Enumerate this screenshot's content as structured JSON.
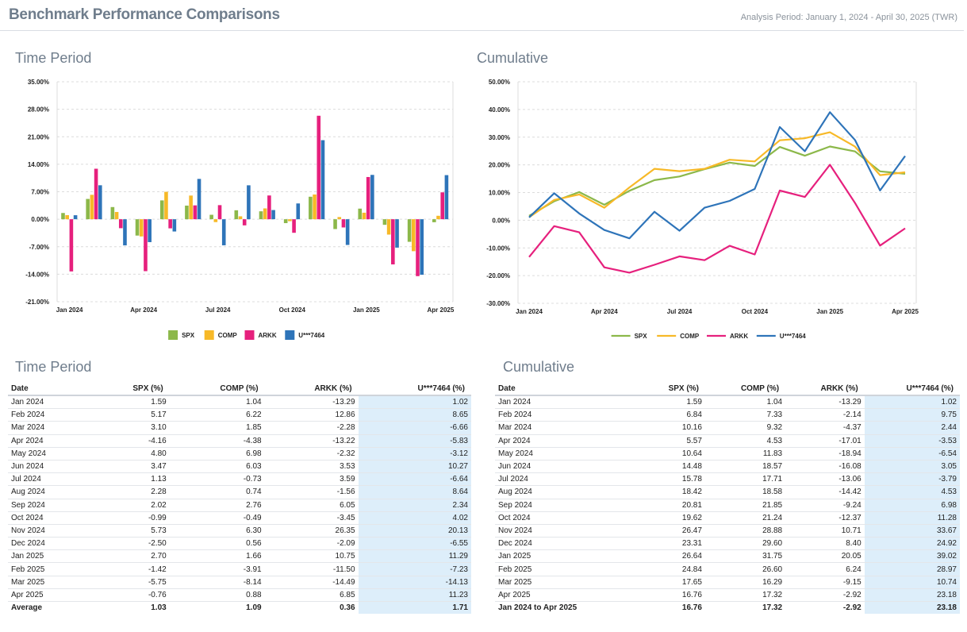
{
  "header": {
    "title": "Benchmark Performance Comparisons",
    "period": "Analysis Period: January 1, 2024 - April 30, 2025 (TWR)"
  },
  "sections": {
    "chart1_title": "Time Period",
    "chart2_title": "Cumulative",
    "table1_title": "Time Period",
    "table2_title": "Cumulative"
  },
  "colors": {
    "SPX": "#8cb84a",
    "COMP": "#f7b928",
    "ARKK": "#e6207d",
    "U***7464": "#2e74b9"
  },
  "months": [
    "Jan 2024",
    "Feb 2024",
    "Mar 2024",
    "Apr 2024",
    "May 2024",
    "Jun 2024",
    "Jul 2024",
    "Aug 2024",
    "Sep 2024",
    "Oct 2024",
    "Nov 2024",
    "Dec 2024",
    "Jan 2025",
    "Feb 2025",
    "Mar 2025",
    "Apr 2025"
  ],
  "chart_data": [
    {
      "type": "bar",
      "x_tick_labels": [
        "Jan 2024",
        "Apr 2024",
        "Jul 2024",
        "Oct 2024",
        "Jan 2025",
        "Apr 2025"
      ],
      "y_ticks": [
        "35.00%",
        "28.00%",
        "21.00%",
        "14.00%",
        "7.00%",
        "0.00%",
        "-7.00%",
        "-14.00%",
        "-21.00%"
      ],
      "ylim": [
        -21,
        35
      ],
      "grid": true,
      "legend": "bottom",
      "series": [
        {
          "name": "SPX",
          "values": [
            1.59,
            5.17,
            3.1,
            -4.16,
            4.8,
            3.47,
            1.13,
            2.28,
            2.02,
            -0.99,
            5.73,
            -2.5,
            2.7,
            -1.42,
            -5.75,
            -0.76
          ]
        },
        {
          "name": "COMP",
          "values": [
            1.04,
            6.22,
            1.85,
            -4.38,
            6.98,
            6.03,
            -0.73,
            0.74,
            2.76,
            -0.49,
            6.3,
            0.56,
            1.66,
            -3.91,
            -8.14,
            0.88
          ]
        },
        {
          "name": "ARKK",
          "values": [
            -13.29,
            12.86,
            -2.28,
            -13.22,
            -2.32,
            3.53,
            3.59,
            -1.56,
            6.05,
            -3.45,
            26.35,
            -2.09,
            10.75,
            -11.5,
            -14.49,
            6.85
          ]
        },
        {
          "name": "U***7464",
          "values": [
            1.02,
            8.65,
            -6.66,
            -5.83,
            -3.12,
            10.27,
            -6.64,
            8.64,
            2.34,
            4.02,
            20.13,
            -6.55,
            11.29,
            -7.23,
            -14.13,
            11.23
          ]
        }
      ]
    },
    {
      "type": "line",
      "x_tick_labels": [
        "Jan 2024",
        "Apr 2024",
        "Jul 2024",
        "Oct 2024",
        "Jan 2025",
        "Apr 2025"
      ],
      "y_ticks": [
        "50.00%",
        "40.00%",
        "30.00%",
        "20.00%",
        "10.00%",
        "0.00%",
        "-10.00%",
        "-20.00%",
        "-30.00%"
      ],
      "ylim": [
        -30,
        50
      ],
      "grid": true,
      "legend": "bottom",
      "series": [
        {
          "name": "SPX",
          "values": [
            1.59,
            6.84,
            10.16,
            5.57,
            10.64,
            14.48,
            15.78,
            18.42,
            20.81,
            19.62,
            26.47,
            23.31,
            26.64,
            24.84,
            17.65,
            16.76
          ]
        },
        {
          "name": "COMP",
          "values": [
            1.04,
            7.33,
            9.32,
            4.53,
            11.83,
            18.57,
            17.71,
            18.58,
            21.85,
            21.24,
            28.88,
            29.6,
            31.75,
            26.6,
            16.29,
            17.32
          ]
        },
        {
          "name": "ARKK",
          "values": [
            -13.29,
            -2.14,
            -4.37,
            -17.01,
            -18.94,
            -16.08,
            -13.06,
            -14.42,
            -9.24,
            -12.37,
            10.71,
            8.4,
            20.05,
            6.24,
            -9.15,
            -2.92
          ]
        },
        {
          "name": "U***7464",
          "values": [
            1.02,
            9.75,
            2.44,
            -3.53,
            -6.54,
            3.05,
            -3.79,
            4.53,
            6.98,
            11.28,
            33.67,
            24.92,
            39.02,
            28.97,
            10.74,
            23.18
          ]
        }
      ]
    }
  ],
  "table1": {
    "headers": [
      "Date",
      "SPX (%)",
      "COMP (%)",
      "ARKK (%)",
      "U***7464 (%)"
    ],
    "rows": [
      [
        "Jan 2024",
        "1.59",
        "1.04",
        "-13.29",
        "1.02"
      ],
      [
        "Feb 2024",
        "5.17",
        "6.22",
        "12.86",
        "8.65"
      ],
      [
        "Mar 2024",
        "3.10",
        "1.85",
        "-2.28",
        "-6.66"
      ],
      [
        "Apr 2024",
        "-4.16",
        "-4.38",
        "-13.22",
        "-5.83"
      ],
      [
        "May 2024",
        "4.80",
        "6.98",
        "-2.32",
        "-3.12"
      ],
      [
        "Jun 2024",
        "3.47",
        "6.03",
        "3.53",
        "10.27"
      ],
      [
        "Jul 2024",
        "1.13",
        "-0.73",
        "3.59",
        "-6.64"
      ],
      [
        "Aug 2024",
        "2.28",
        "0.74",
        "-1.56",
        "8.64"
      ],
      [
        "Sep 2024",
        "2.02",
        "2.76",
        "6.05",
        "2.34"
      ],
      [
        "Oct 2024",
        "-0.99",
        "-0.49",
        "-3.45",
        "4.02"
      ],
      [
        "Nov 2024",
        "5.73",
        "6.30",
        "26.35",
        "20.13"
      ],
      [
        "Dec 2024",
        "-2.50",
        "0.56",
        "-2.09",
        "-6.55"
      ],
      [
        "Jan 2025",
        "2.70",
        "1.66",
        "10.75",
        "11.29"
      ],
      [
        "Feb 2025",
        "-1.42",
        "-3.91",
        "-11.50",
        "-7.23"
      ],
      [
        "Mar 2025",
        "-5.75",
        "-8.14",
        "-14.49",
        "-14.13"
      ],
      [
        "Apr 2025",
        "-0.76",
        "0.88",
        "6.85",
        "11.23"
      ]
    ],
    "total": [
      "Average",
      "1.03",
      "1.09",
      "0.36",
      "1.71"
    ]
  },
  "table2": {
    "headers": [
      "Date",
      "SPX (%)",
      "COMP (%)",
      "ARKK (%)",
      "U***7464 (%)"
    ],
    "rows": [
      [
        "Jan 2024",
        "1.59",
        "1.04",
        "-13.29",
        "1.02"
      ],
      [
        "Feb 2024",
        "6.84",
        "7.33",
        "-2.14",
        "9.75"
      ],
      [
        "Mar 2024",
        "10.16",
        "9.32",
        "-4.37",
        "2.44"
      ],
      [
        "Apr 2024",
        "5.57",
        "4.53",
        "-17.01",
        "-3.53"
      ],
      [
        "May 2024",
        "10.64",
        "11.83",
        "-18.94",
        "-6.54"
      ],
      [
        "Jun 2024",
        "14.48",
        "18.57",
        "-16.08",
        "3.05"
      ],
      [
        "Jul 2024",
        "15.78",
        "17.71",
        "-13.06",
        "-3.79"
      ],
      [
        "Aug 2024",
        "18.42",
        "18.58",
        "-14.42",
        "4.53"
      ],
      [
        "Sep 2024",
        "20.81",
        "21.85",
        "-9.24",
        "6.98"
      ],
      [
        "Oct 2024",
        "19.62",
        "21.24",
        "-12.37",
        "11.28"
      ],
      [
        "Nov 2024",
        "26.47",
        "28.88",
        "10.71",
        "33.67"
      ],
      [
        "Dec 2024",
        "23.31",
        "29.60",
        "8.40",
        "24.92"
      ],
      [
        "Jan 2025",
        "26.64",
        "31.75",
        "20.05",
        "39.02"
      ],
      [
        "Feb 2025",
        "24.84",
        "26.60",
        "6.24",
        "28.97"
      ],
      [
        "Mar 2025",
        "17.65",
        "16.29",
        "-9.15",
        "10.74"
      ],
      [
        "Apr 2025",
        "16.76",
        "17.32",
        "-2.92",
        "23.18"
      ]
    ],
    "total": [
      "Jan 2024 to Apr 2025",
      "16.76",
      "17.32",
      "-2.92",
      "23.18"
    ]
  }
}
